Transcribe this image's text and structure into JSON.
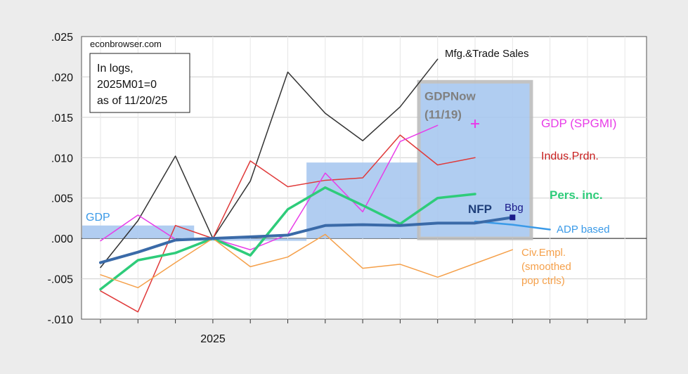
{
  "chart_data": {
    "type": "line",
    "source": "econbrowser.com",
    "note_lines": [
      "In logs,",
      "2025M01=0",
      "as of 11/20/25"
    ],
    "x_tick_label": "2025",
    "ylim": [
      -0.01,
      0.025
    ],
    "y_ticks": [
      {
        "value": 0.025,
        "label": ".025"
      },
      {
        "value": 0.02,
        "label": ".020"
      },
      {
        "value": 0.015,
        "label": ".015"
      },
      {
        "value": 0.01,
        "label": ".010"
      },
      {
        "value": 0.005,
        "label": ".005"
      },
      {
        "value": 0.0,
        "label": ".000"
      },
      {
        "value": -0.005,
        "label": "-.005"
      },
      {
        "value": -0.01,
        "label": "-.010"
      }
    ],
    "months": [
      "2024M10",
      "2024M11",
      "2024M12",
      "2025M01",
      "2025M02",
      "2025M03",
      "2025M04",
      "2025M05",
      "2025M06",
      "2025M07",
      "2025M08",
      "2025M09",
      "2025M10",
      "2025M11",
      "2025M12"
    ],
    "gdp_quarters": [
      {
        "label": "GDP",
        "start": "2024M10",
        "end": "2024M12",
        "value": 0.0016,
        "color": "#a8c8f0"
      },
      {
        "label": "",
        "start": "2025M01",
        "end": "2025M03",
        "value": -0.0003,
        "color": "#a8c8f0"
      },
      {
        "label": "",
        "start": "2025M04",
        "end": "2025M06",
        "value": 0.0094,
        "color": "#a8c8f0"
      }
    ],
    "gdpnow": {
      "label": "GDPNow",
      "sublabel": "(11/19)",
      "start": "2025M07",
      "end": "2025M09",
      "value": 0.0194,
      "fill": "#a8c8f0",
      "border": "#bdbdbd"
    },
    "series": [
      {
        "name": "Mfg.&Trade Sales",
        "color": "#333333",
        "width": 1.5,
        "values": [
          -0.0036,
          0.0022,
          0.0102,
          0.0,
          0.0071,
          0.0206,
          0.0155,
          0.0121,
          0.0163,
          0.0222,
          null,
          null,
          null,
          null,
          null
        ]
      },
      {
        "name": "Indus.Prdn.",
        "color": "#e03a3a",
        "width": 1.5,
        "values": [
          -0.0065,
          -0.0091,
          0.0016,
          0.0,
          0.0096,
          0.0064,
          0.0072,
          0.0075,
          0.0128,
          0.0091,
          0.01,
          null,
          null,
          null,
          null
        ]
      },
      {
        "name": "GDP (SPGMI)",
        "color": "#e83ce8",
        "width": 1.5,
        "values": [
          -0.0003,
          0.0029,
          -0.0001,
          0.0,
          -0.0014,
          0.0005,
          0.0081,
          0.0033,
          0.012,
          0.014,
          null,
          null,
          null,
          null,
          null
        ]
      },
      {
        "name": "Pers. inc.",
        "color": "#2ecc7a",
        "width": 3.5,
        "values": [
          -0.0063,
          -0.0027,
          -0.0018,
          0.0,
          -0.0021,
          0.0036,
          0.0063,
          0.0041,
          0.0018,
          0.005,
          0.0055,
          null,
          null,
          null,
          null
        ]
      },
      {
        "name": "Civ.Empl. (smoothed pop ctrls)",
        "color": "#f5a04a",
        "width": 1.5,
        "values": [
          -0.0045,
          -0.0061,
          -0.003,
          0.0,
          -0.0035,
          -0.0023,
          0.0005,
          -0.0037,
          -0.0032,
          -0.0048,
          -0.0031,
          -0.0014,
          null,
          null,
          null
        ]
      },
      {
        "name": "ADP based",
        "color": "#3a9ae8",
        "width": 2.5,
        "values": [
          null,
          null,
          null,
          null,
          null,
          null,
          null,
          null,
          null,
          null,
          0.0021,
          0.0017,
          0.0011,
          null,
          null
        ]
      },
      {
        "name": "NFP",
        "color": "#3a6aa8",
        "width": 4,
        "values": [
          -0.003,
          -0.0017,
          -0.0002,
          0.0,
          0.0002,
          0.0004,
          0.0016,
          0.0017,
          0.0016,
          0.0019,
          0.0019,
          0.0026,
          null,
          null,
          null
        ]
      }
    ],
    "gdpnow_point": {
      "month": "2025M08",
      "value": 0.0142,
      "marker": "+",
      "color": "#e83ce8"
    },
    "bbg_point": {
      "label": "Bbg",
      "month": "2025M09",
      "value": 0.0026,
      "color": "#1a1a8a"
    },
    "labels": {
      "mfg": "Mfg.&Trade Sales",
      "gdp_spgmi": "GDP (SPGMI)",
      "indus": "Indus.Prdn.",
      "pers": "Pers. inc.",
      "nfp": "NFP",
      "bbg": "Bbg",
      "adp": "ADP based",
      "civ": [
        "Civ.Empl.",
        "(smoothed",
        "pop ctrls)"
      ]
    }
  }
}
